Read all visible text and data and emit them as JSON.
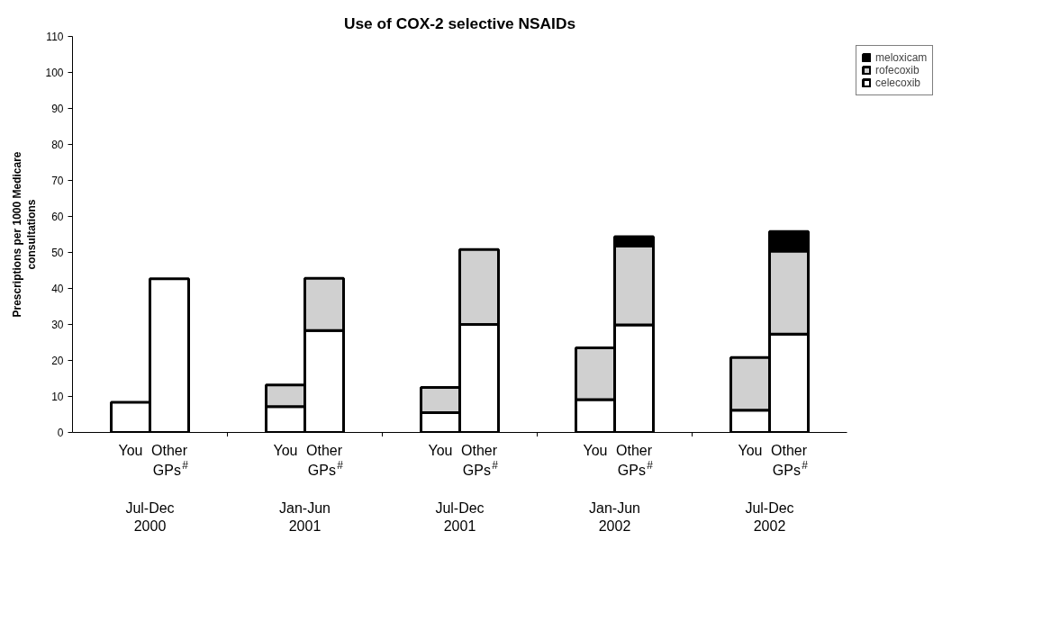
{
  "chart_data": {
    "type": "bar",
    "stacked": true,
    "title": "Use of COX-2 selective NSAIDs",
    "ylabel": "Prescriptions per 1000 Medicare consultations",
    "categories": [
      null,
      "You",
      "Other GPs$^{#}$",
      null,
      null,
      "You",
      "Other GPs$^{#}$",
      null,
      null,
      "You",
      "Other GPs$^{#}$",
      null,
      null,
      "You",
      "Other GPs$^{#}$",
      null,
      null,
      "You",
      "Other GPs$^{#}$",
      null
    ],
    "annotations": [
      "Jul-Dec 2000",
      "Jan-Jun 2001",
      "Jul-Dec 2001",
      "Jan-Jun 2002",
      "Jul-Dec 2002"
    ],
    "series": [
      {
        "name": "celecoxib",
        "color": "#ffffff",
        "values": [
          null,
          8.4,
          42.7,
          null,
          null,
          7.2,
          28.3,
          null,
          null,
          5.5,
          30.0,
          null,
          null,
          9.1,
          29.9,
          null,
          null,
          6.2,
          27.3,
          null
        ]
      },
      {
        "name": "rofecoxib",
        "color": "#d0d0d0",
        "values": [
          null,
          null,
          null,
          null,
          null,
          6.0,
          14.5,
          null,
          null,
          7.0,
          20.8,
          null,
          null,
          14.4,
          21.9,
          null,
          null,
          14.6,
          23.1,
          null
        ]
      },
      {
        "name": "meloxicam",
        "color": "#000000",
        "values": [
          null,
          null,
          null,
          null,
          null,
          null,
          null,
          null,
          null,
          null,
          null,
          null,
          null,
          null,
          2.6,
          null,
          null,
          null,
          5.4,
          null
        ]
      }
    ],
    "ylim": [
      0,
      110
    ],
    "yticks": [
      0,
      10,
      20,
      30,
      40,
      50,
      60,
      70,
      80,
      90,
      100,
      110
    ],
    "legend": "top right",
    "grid": false
  }
}
